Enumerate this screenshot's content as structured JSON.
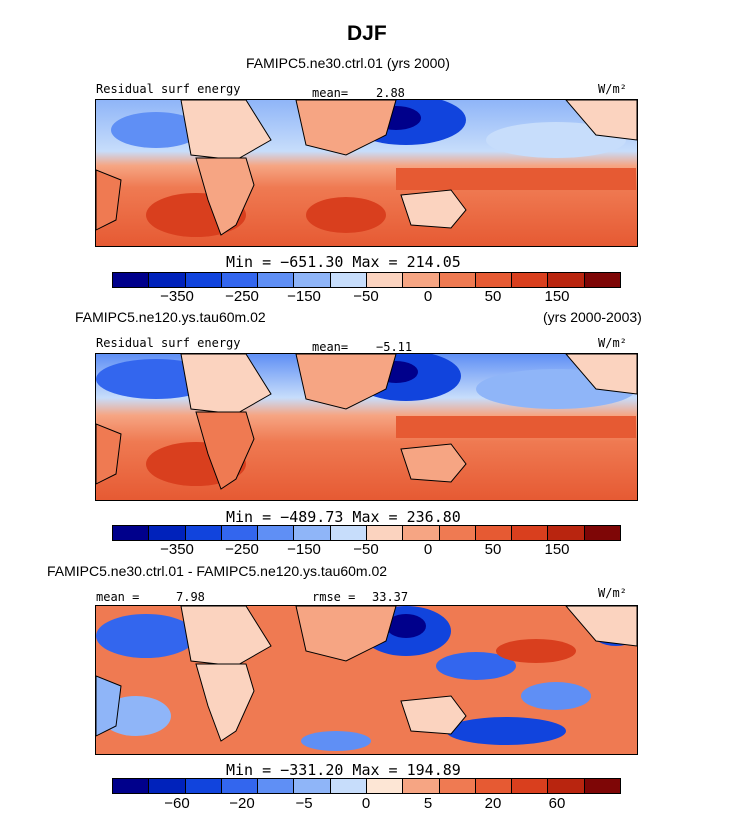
{
  "title": "DJF",
  "panel1": {
    "case": "FAMIPC5.ne30.ctrl.01 (yrs 2000)",
    "variable": "Residual surf energy",
    "mean_label": "mean=",
    "mean_value": "2.88",
    "units": "W/m²",
    "minmax": "Min = −651.30 Max = 214.05"
  },
  "panel2": {
    "case": "FAMIPC5.ne120.ys.tau60m.02",
    "years": "(yrs 2000-2003)",
    "variable": "Residual surf energy",
    "mean_label": "mean=",
    "mean_value": "−5.11",
    "units": "W/m²",
    "minmax": "Min = −489.73 Max = 236.80"
  },
  "panel3": {
    "case": "FAMIPC5.ne30.ctrl.01 - FAMIPC5.ne120.ys.tau60m.02",
    "mean_label": "mean =",
    "mean_value": "7.98",
    "rmse_label": "rmse =",
    "rmse_value": "33.37",
    "units": "W/m²",
    "minmax": "Min = −331.20 Max = 194.89"
  },
  "colorbar_top": {
    "colors": [
      "#00008b",
      "#0022bb",
      "#1144dd",
      "#3366ee",
      "#5f8ff5",
      "#8fb5f8",
      "#c7ddfb",
      "#fbd3bf",
      "#f6a583",
      "#ef7a52",
      "#e65a33",
      "#d93f1e",
      "#b9250f",
      "#7e0606"
    ],
    "labels": [
      "−350",
      "−250",
      "−150",
      "−50",
      "0",
      "50",
      "150"
    ]
  },
  "colorbar_diff": {
    "colors": [
      "#00008b",
      "#0022bb",
      "#1144dd",
      "#3366ee",
      "#5f8ff5",
      "#8fb5f8",
      "#c7ddfb",
      "#fde6d5",
      "#f6a583",
      "#ef7a52",
      "#e65a33",
      "#d93f1e",
      "#b9250f",
      "#7e0606"
    ],
    "labels": [
      "−60",
      "−20",
      "−5",
      "0",
      "5",
      "20",
      "60"
    ]
  }
}
